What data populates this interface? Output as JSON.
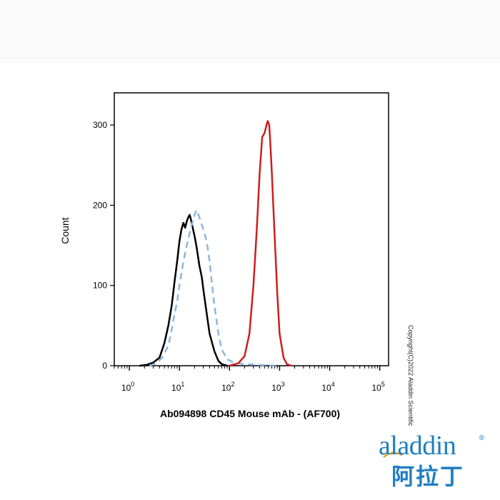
{
  "chart_data": {
    "type": "line",
    "title": "",
    "xlabel": "Ab094898 CD45 Mouse mAb - (AF700)",
    "ylabel": "Count",
    "xscale": "log",
    "xlim": [
      0.5,
      150000
    ],
    "ylim": [
      0,
      330
    ],
    "x_ticks": [
      {
        "value": 1,
        "base": "10",
        "exp": "0"
      },
      {
        "value": 10,
        "base": "10",
        "exp": "1"
      },
      {
        "value": 100,
        "base": "10",
        "exp": "2"
      },
      {
        "value": 1000,
        "base": "10",
        "exp": "3"
      },
      {
        "value": 10000,
        "base": "10",
        "exp": "4"
      },
      {
        "value": 100000,
        "base": "10",
        "exp": "5"
      }
    ],
    "y_ticks": [
      0,
      100,
      200,
      300
    ],
    "grid": false,
    "legend": "none",
    "series": [
      {
        "color": "#000000",
        "style": "solid",
        "points": [
          [
            1.6,
            0
          ],
          [
            2.2,
            1
          ],
          [
            3,
            4
          ],
          [
            4,
            10
          ],
          [
            5,
            28
          ],
          [
            6,
            50
          ],
          [
            7,
            75
          ],
          [
            8,
            105
          ],
          [
            9,
            130
          ],
          [
            10,
            155
          ],
          [
            11,
            170
          ],
          [
            12,
            178
          ],
          [
            13,
            172
          ],
          [
            14,
            180
          ],
          [
            15,
            185
          ],
          [
            16,
            188
          ],
          [
            17,
            182
          ],
          [
            18,
            175
          ],
          [
            19,
            168
          ],
          [
            20,
            162
          ],
          [
            22,
            148
          ],
          [
            25,
            125
          ],
          [
            28,
            110
          ],
          [
            30,
            95
          ],
          [
            35,
            65
          ],
          [
            40,
            40
          ],
          [
            50,
            18
          ],
          [
            60,
            6
          ],
          [
            70,
            2
          ],
          [
            90,
            0
          ]
        ]
      },
      {
        "color": "#8ab8df",
        "style": "dashed",
        "points": [
          [
            2.5,
            0
          ],
          [
            3.5,
            3
          ],
          [
            4.5,
            10
          ],
          [
            6,
            25
          ],
          [
            7,
            45
          ],
          [
            8,
            65
          ],
          [
            9,
            80
          ],
          [
            10,
            100
          ],
          [
            12,
            130
          ],
          [
            14,
            150
          ],
          [
            16,
            165
          ],
          [
            18,
            178
          ],
          [
            20,
            188
          ],
          [
            22,
            194
          ],
          [
            24,
            188
          ],
          [
            26,
            182
          ],
          [
            30,
            170
          ],
          [
            35,
            155
          ],
          [
            40,
            130
          ],
          [
            45,
            100
          ],
          [
            50,
            75
          ],
          [
            60,
            40
          ],
          [
            70,
            20
          ],
          [
            90,
            8
          ],
          [
            120,
            4
          ],
          [
            200,
            2
          ],
          [
            400,
            1
          ],
          [
            1000,
            0
          ]
        ]
      },
      {
        "color": "#cc1f1f",
        "style": "solid",
        "points": [
          [
            100,
            0
          ],
          [
            150,
            3
          ],
          [
            200,
            12
          ],
          [
            250,
            40
          ],
          [
            300,
            100
          ],
          [
            350,
            170
          ],
          [
            400,
            240
          ],
          [
            450,
            285
          ],
          [
            500,
            290
          ],
          [
            550,
            300
          ],
          [
            580,
            305
          ],
          [
            620,
            300
          ],
          [
            650,
            280
          ],
          [
            700,
            240
          ],
          [
            800,
            160
          ],
          [
            900,
            90
          ],
          [
            1000,
            40
          ],
          [
            1200,
            10
          ],
          [
            1400,
            2
          ],
          [
            1700,
            0
          ]
        ]
      }
    ]
  },
  "watermark": {
    "copyright": "Copyright(C)2022 Aladdin Scientific",
    "logo_text": "aladdin",
    "logo_reg": "®",
    "logo_cn": "阿拉丁",
    "brand_color": "#1f7ec2"
  }
}
